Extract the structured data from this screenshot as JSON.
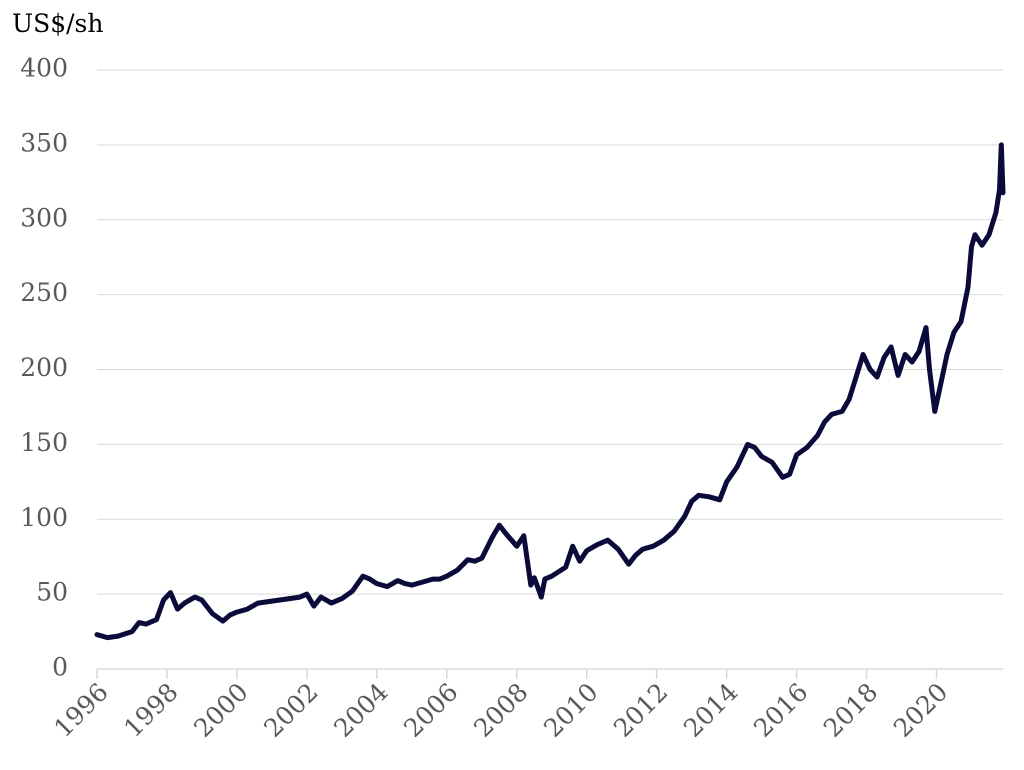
{
  "chart_data": {
    "type": "line",
    "unit_label": "US$/sh",
    "title": "",
    "xlabel": "",
    "ylabel": "",
    "xlim": [
      1996,
      2021.9
    ],
    "ylim": [
      0,
      400
    ],
    "y_ticks": [
      0,
      50,
      100,
      150,
      200,
      250,
      300,
      350,
      400
    ],
    "x_ticks": [
      1996,
      1998,
      2000,
      2002,
      2004,
      2006,
      2008,
      2010,
      2012,
      2014,
      2016,
      2018,
      2020
    ],
    "x_tick_labels": [
      "1996",
      "1998",
      "2000",
      "2002",
      "2004",
      "2006",
      "2008",
      "2010",
      "2012",
      "2014",
      "2016",
      "2018",
      "2020"
    ],
    "y_tick_labels": [
      "0",
      "50",
      "100",
      "150",
      "200",
      "250",
      "300",
      "350",
      "400"
    ],
    "grid": true,
    "legend": "none",
    "series_color": "#0b0b3b",
    "series": [
      {
        "x": [
          1996.0,
          1996.3,
          1996.6,
          1997.0,
          1997.2,
          1997.4,
          1997.7,
          1997.9,
          1998.1,
          1998.3,
          1998.5,
          1998.8,
          1999.0,
          1999.3,
          1999.6,
          1999.8,
          2000.0,
          2000.3,
          2000.6,
          2000.9,
          2001.2,
          2001.5,
          2001.8,
          2002.0,
          2002.2,
          2002.4,
          2002.7,
          2003.0,
          2003.3,
          2003.6,
          2003.8,
          2004.0,
          2004.3,
          2004.6,
          2004.8,
          2005.0,
          2005.3,
          2005.6,
          2005.8,
          2006.0,
          2006.3,
          2006.6,
          2006.8,
          2007.0,
          2007.3,
          2007.5,
          2007.7,
          2008.0,
          2008.2,
          2008.4,
          2008.5,
          2008.7,
          2008.8,
          2009.0,
          2009.2,
          2009.4,
          2009.6,
          2009.8,
          2010.0,
          2010.3,
          2010.6,
          2010.9,
          2011.2,
          2011.4,
          2011.6,
          2011.9,
          2012.2,
          2012.5,
          2012.8,
          2013.0,
          2013.2,
          2013.5,
          2013.8,
          2014.0,
          2014.3,
          2014.6,
          2014.8,
          2015.0,
          2015.3,
          2015.6,
          2015.8,
          2016.0,
          2016.3,
          2016.6,
          2016.8,
          2017.0,
          2017.3,
          2017.5,
          2017.7,
          2017.9,
          2018.1,
          2018.3,
          2018.5,
          2018.7,
          2018.9,
          2019.1,
          2019.3,
          2019.5,
          2019.7,
          2019.8,
          2019.95,
          2020.1,
          2020.3,
          2020.5,
          2020.7,
          2020.9,
          2021.0,
          2021.1,
          2021.3,
          2021.5,
          2021.7,
          2021.8,
          2021.85,
          2021.9
        ],
        "values": [
          23,
          21,
          22,
          25,
          31,
          30,
          33,
          46,
          51,
          40,
          44,
          48,
          46,
          37,
          32,
          36,
          38,
          40,
          44,
          45,
          46,
          47,
          48,
          50,
          42,
          48,
          44,
          47,
          52,
          62,
          60,
          57,
          55,
          59,
          57,
          56,
          58,
          60,
          60,
          62,
          66,
          73,
          72,
          74,
          88,
          96,
          90,
          82,
          89,
          56,
          61,
          48,
          60,
          62,
          65,
          68,
          82,
          72,
          79,
          83,
          86,
          80,
          70,
          76,
          80,
          82,
          86,
          92,
          102,
          112,
          116,
          115,
          113,
          125,
          135,
          150,
          148,
          142,
          138,
          128,
          130,
          143,
          148,
          156,
          165,
          170,
          172,
          180,
          195,
          210,
          200,
          195,
          208,
          215,
          196,
          210,
          205,
          212,
          228,
          200,
          172,
          188,
          210,
          225,
          232,
          255,
          282,
          290,
          283,
          290,
          305,
          320,
          350,
          318
        ]
      }
    ]
  }
}
